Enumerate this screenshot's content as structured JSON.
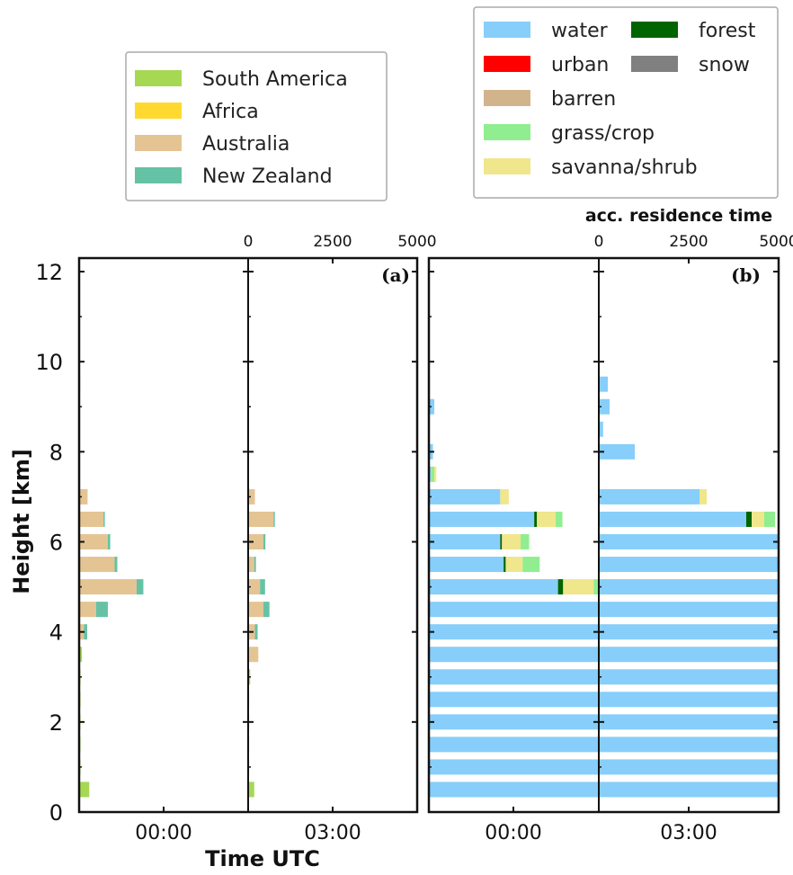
{
  "chart_data": {
    "type": "bar",
    "orientation": "horizontal-stacked",
    "ylabel": "Height [km]",
    "xlabel": "Time UTC",
    "top_axis_label": "acc. residence time",
    "ylim": [
      0,
      12.3
    ],
    "yticks": [
      "0",
      "2",
      "4",
      "6",
      "8",
      "10",
      "12"
    ],
    "bar_heights_km": [
      0.5,
      1.0,
      1.5,
      2.0,
      2.5,
      3.0,
      3.5,
      4.0,
      4.5,
      5.0,
      5.5,
      6.0,
      6.5,
      7.0,
      7.5,
      8.0,
      8.5,
      9.0,
      9.5,
      10.0
    ],
    "time_labels": [
      "00:00",
      "03:00"
    ],
    "top_ticks_a": [
      "0",
      "2500",
      "5000"
    ],
    "top_ticks_b": [
      "0",
      "2500",
      "5000"
    ],
    "xlim_top": [
      0,
      5000
    ],
    "legend_a": {
      "placement": "top-left",
      "entries": [
        {
          "name": "South America",
          "color": "#a6d854"
        },
        {
          "name": "Africa",
          "color": "#ffd92f"
        },
        {
          "name": "Australia",
          "color": "#e5c494"
        },
        {
          "name": "New Zealand",
          "color": "#66c2a5"
        }
      ]
    },
    "legend_b": {
      "placement": "top-right",
      "entries": [
        {
          "name": "water",
          "color": "#87cefa"
        },
        {
          "name": "forest",
          "color": "#006400"
        },
        {
          "name": "urban",
          "color": "#ff0000"
        },
        {
          "name": "snow",
          "color": "#808080"
        },
        {
          "name": "barren",
          "color": "#d2b48c"
        },
        {
          "name": "grass/crop",
          "color": "#90ee90"
        },
        {
          "name": "savanna/shrub",
          "color": "#f0e68c"
        }
      ]
    },
    "panels": [
      {
        "label": "(a)",
        "columns": [
          {
            "time": "00:00",
            "stacks": [
              [
                [
                  "South America",
                  300
                ]
              ],
              [
                [
                  "South America",
                  40
                ]
              ],
              [
                [
                  "South America",
                  40
                ]
              ],
              [
                [
                  "South America",
                  40
                ]
              ],
              [
                [
                  "South America",
                  40
                ]
              ],
              [
                [
                  "South America",
                  40
                ]
              ],
              [
                [
                  "South America",
                  80
                ]
              ],
              [
                [
                  "Australia",
                  140
                ],
                [
                  "New Zealand",
                  100
                ]
              ],
              [
                [
                  "Australia",
                  500
                ],
                [
                  "New Zealand",
                  350
                ]
              ],
              [
                [
                  "Australia",
                  1700
                ],
                [
                  "New Zealand",
                  200
                ]
              ],
              [
                [
                  "Australia",
                  1050
                ],
                [
                  "New Zealand",
                  80
                ]
              ],
              [
                [
                  "Australia",
                  850
                ],
                [
                  "New Zealand",
                  70
                ]
              ],
              [
                [
                  "Australia",
                  720
                ],
                [
                  "New Zealand",
                  40
                ]
              ],
              [
                [
                  "Australia",
                  250
                ]
              ],
              [],
              [],
              [],
              [],
              [
                [
                  "Australia",
                  30
                ]
              ],
              []
            ]
          },
          {
            "time": "03:00",
            "stacks": [
              [
                [
                  "South America",
                  180
                ]
              ],
              [
                [
                  "South America",
                  30
                ]
              ],
              [
                [
                  "South America",
                  30
                ]
              ],
              [
                [
                  "South America",
                  30
                ]
              ],
              [
                [
                  "South America",
                  30
                ]
              ],
              [
                [
                  "South America",
                  60
                ]
              ],
              [
                [
                  "Australia",
                  300
                ]
              ],
              [
                [
                  "Australia",
                  200
                ],
                [
                  "New Zealand",
                  80
                ]
              ],
              [
                [
                  "Australia",
                  450
                ],
                [
                  "New Zealand",
                  180
                ]
              ],
              [
                [
                  "Australia",
                  350
                ],
                [
                  "New Zealand",
                  150
                ]
              ],
              [
                [
                  "Australia",
                  180
                ],
                [
                  "New Zealand",
                  50
                ]
              ],
              [
                [
                  "Australia",
                  450
                ],
                [
                  "New Zealand",
                  60
                ]
              ],
              [
                [
                  "Australia",
                  750
                ],
                [
                  "New Zealand",
                  40
                ]
              ],
              [
                [
                  "Australia",
                  200
                ]
              ],
              [],
              [],
              [],
              [],
              [],
              []
            ]
          }
        ]
      },
      {
        "label": "(b)",
        "columns": [
          {
            "time": "00:00",
            "stacks": [
              [
                [
                  "water",
                  5000
                ]
              ],
              [
                [
                  "water",
                  5000
                ]
              ],
              [
                [
                  "water",
                  5000
                ]
              ],
              [
                [
                  "water",
                  5000
                ]
              ],
              [
                [
                  "water",
                  5000
                ]
              ],
              [
                [
                  "water",
                  5000
                ]
              ],
              [
                [
                  "water",
                  5000
                ]
              ],
              [
                [
                  "water",
                  5000
                ]
              ],
              [
                [
                  "water",
                  5000
                ]
              ],
              [
                [
                  "water",
                  3800
                ],
                [
                  "forest",
                  150
                ],
                [
                  "savanna/shrub",
                  900
                ],
                [
                  "grass/crop",
                  150
                ]
              ],
              [
                [
                  "water",
                  2200
                ],
                [
                  "forest",
                  60
                ],
                [
                  "savanna/shrub",
                  500
                ],
                [
                  "grass/crop",
                  500
                ]
              ],
              [
                [
                  "water",
                  2100
                ],
                [
                  "forest",
                  50
                ],
                [
                  "savanna/shrub",
                  550
                ],
                [
                  "grass/crop",
                  250
                ]
              ],
              [
                [
                  "water",
                  3100
                ],
                [
                  "forest",
                  80
                ],
                [
                  "savanna/shrub",
                  550
                ],
                [
                  "grass/crop",
                  200
                ]
              ],
              [
                [
                  "water",
                  2100
                ],
                [
                  "savanna/shrub",
                  250
                ]
              ],
              [
                [
                  "water",
                  60
                ],
                [
                  "grass/crop",
                  100
                ],
                [
                  "savanna/shrub",
                  60
                ]
              ],
              [
                [
                  "water",
                  120
                ]
              ],
              [],
              [
                [
                  "water",
                  160
                ]
              ],
              [
                [
                  "water",
                  30
                ]
              ],
              []
            ]
          },
          {
            "time": "03:00",
            "stacks": [
              [
                [
                  "water",
                  5000
                ]
              ],
              [
                [
                  "water",
                  5000
                ]
              ],
              [
                [
                  "water",
                  5000
                ]
              ],
              [
                [
                  "water",
                  5000
                ]
              ],
              [
                [
                  "water",
                  5000
                ]
              ],
              [
                [
                  "water",
                  5000
                ]
              ],
              [
                [
                  "water",
                  5000
                ]
              ],
              [
                [
                  "water",
                  5000
                ]
              ],
              [
                [
                  "water",
                  5000
                ]
              ],
              [
                [
                  "water",
                  5000
                ]
              ],
              [
                [
                  "water",
                  5000
                ],
                [
                  "forest",
                  50
                ]
              ],
              [
                [
                  "water",
                  5000
                ]
              ],
              [
                [
                  "water",
                  4100
                ],
                [
                  "forest",
                  150
                ],
                [
                  "savanna/shrub",
                  350
                ],
                [
                  "grass/crop",
                  300
                ]
              ],
              [
                [
                  "water",
                  2800
                ],
                [
                  "savanna/shrub",
                  200
                ]
              ],
              [],
              [
                [
                  "water",
                  1000
                ]
              ],
              [
                [
                  "water",
                  120
                ]
              ],
              [
                [
                  "water",
                  300
                ]
              ],
              [
                [
                  "water",
                  250
                ]
              ],
              []
            ]
          }
        ]
      }
    ]
  }
}
